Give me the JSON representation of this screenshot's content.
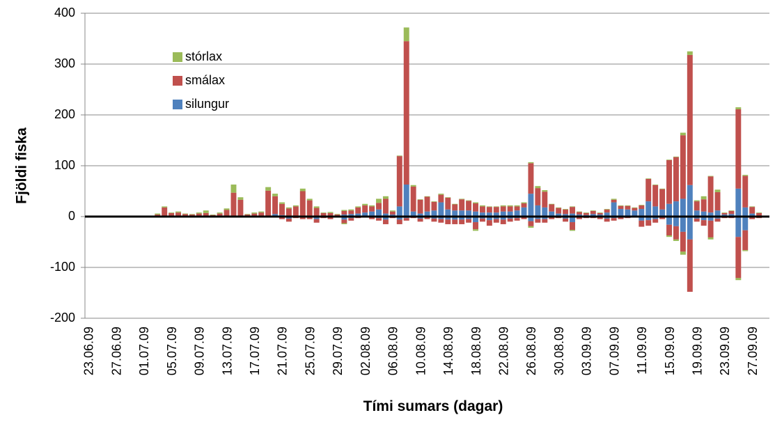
{
  "chart_data": {
    "type": "stacked_bar",
    "y_label": "Fjöldi fiska",
    "x_label": "Tími sumars (dagar)",
    "ylim": [
      -200,
      400
    ],
    "yticks": [
      -200,
      -100,
      0,
      100,
      200,
      300,
      400
    ],
    "grid": true,
    "legend": "upper left",
    "categories": [
      "23.06.09",
      null,
      null,
      null,
      "27.06.09",
      null,
      null,
      null,
      "01.07.09",
      null,
      null,
      null,
      "05.07.09",
      null,
      null,
      null,
      "09.07.09",
      null,
      null,
      null,
      "13.07.09",
      null,
      null,
      null,
      "17.07.09",
      null,
      null,
      null,
      "21.07.09",
      null,
      null,
      null,
      "25.07.09",
      null,
      null,
      null,
      "29.07.09",
      null,
      null,
      null,
      "02.08.09",
      null,
      null,
      null,
      "06.08.09",
      null,
      null,
      null,
      "10.08.09",
      null,
      null,
      null,
      "14.08.09",
      null,
      null,
      null,
      "18.08.09",
      null,
      null,
      null,
      "22.08.09",
      null,
      null,
      null,
      "26.08.09",
      null,
      null,
      null,
      "30.08.09",
      null,
      null,
      null,
      "03.09.09",
      null,
      null,
      null,
      "07.09.09",
      null,
      null,
      null,
      "11.09.09",
      null,
      null,
      null,
      "15.09.09",
      null,
      null,
      null,
      "19.09.09",
      null,
      null,
      null,
      "23.09.09",
      null,
      null,
      null,
      "27.09.09",
      null,
      null
    ],
    "series": [
      {
        "name": "silungur",
        "color": "#4f81bd",
        "values": [
          0,
          0,
          0,
          0,
          0,
          0,
          0,
          0,
          0,
          0,
          0,
          0,
          0,
          0,
          0,
          0,
          0,
          0,
          0,
          0,
          0,
          0,
          0,
          0,
          0,
          2,
          2,
          5,
          3,
          2,
          2,
          2,
          2,
          2,
          1,
          1,
          1,
          4,
          5,
          6,
          8,
          10,
          14,
          6,
          4,
          20,
          63,
          10,
          6,
          10,
          12,
          28,
          14,
          12,
          12,
          12,
          10,
          8,
          8,
          8,
          10,
          10,
          12,
          18,
          45,
          22,
          18,
          10,
          6,
          5,
          6,
          4,
          3,
          5,
          4,
          8,
          28,
          15,
          14,
          12,
          15,
          30,
          20,
          14,
          25,
          30,
          35,
          62,
          12,
          10,
          8,
          12,
          4,
          5,
          55,
          18,
          6,
          2,
          0
        ],
        "down_values": [
          0,
          0,
          0,
          0,
          0,
          0,
          0,
          0,
          0,
          0,
          0,
          0,
          0,
          0,
          0,
          0,
          0,
          0,
          0,
          0,
          0,
          0,
          0,
          0,
          0,
          0,
          0,
          -1,
          -2,
          -4,
          -1,
          -2,
          -2,
          -5,
          -1,
          -2,
          -1,
          -6,
          -3,
          -1,
          -1,
          -2,
          -3,
          -6,
          -1,
          -6,
          -3,
          -1,
          -4,
          -2,
          -4,
          -5,
          -6,
          -6,
          -6,
          -5,
          -11,
          -4,
          -7,
          -5,
          -6,
          -4,
          -3,
          -2,
          -9,
          -5,
          -5,
          -2,
          -1,
          -4,
          -11,
          -2,
          -1,
          -1,
          -2,
          -4,
          -3,
          -2,
          -1,
          -1,
          -8,
          -7,
          -5,
          -2,
          -16,
          -19,
          -30,
          -45,
          -4,
          -7,
          -8,
          -4,
          -1,
          -1,
          -40,
          -27,
          -2,
          -1,
          0
        ]
      },
      {
        "name": "smálax",
        "color": "#c0504d",
        "values": [
          0,
          0,
          0,
          0,
          0,
          0,
          0,
          2,
          2,
          2,
          4,
          18,
          7,
          8,
          5,
          4,
          6,
          7,
          3,
          6,
          13,
          47,
          33,
          4,
          6,
          6,
          49,
          35,
          22,
          14,
          18,
          48,
          30,
          15,
          6,
          6,
          3,
          7,
          7,
          12,
          14,
          10,
          13,
          29,
          6,
          99,
          282,
          49,
          27,
          29,
          17,
          15,
          23,
          12,
          22,
          19,
          16,
          12,
          11,
          11,
          10,
          10,
          8,
          8,
          60,
          34,
          31,
          14,
          11,
          9,
          13,
          5,
          4,
          6,
          3,
          6,
          5,
          6,
          7,
          5,
          7,
          44,
          42,
          40,
          86,
          87,
          125,
          256,
          18,
          24,
          71,
          36,
          3,
          6,
          156,
          62,
          13,
          5,
          2
        ],
        "down_values": [
          0,
          0,
          0,
          0,
          0,
          0,
          0,
          0,
          0,
          0,
          0,
          0,
          0,
          0,
          0,
          0,
          0,
          0,
          0,
          0,
          0,
          0,
          0,
          0,
          0,
          0,
          0,
          -1,
          -3,
          -6,
          -2,
          -3,
          -3,
          -7,
          -2,
          -3,
          -1,
          -7,
          -5,
          -2,
          -1,
          -3,
          -5,
          -9,
          -2,
          -9,
          -5,
          -2,
          -6,
          -3,
          -6,
          -7,
          -9,
          -9,
          -9,
          -7,
          -14,
          -6,
          -11,
          -7,
          -9,
          -6,
          -5,
          -3,
          -10,
          -7,
          -7,
          -3,
          -2,
          -6,
          -15,
          -3,
          -2,
          -2,
          -3,
          -6,
          -5,
          -3,
          -2,
          -1,
          -12,
          -11,
          -7,
          -3,
          -21,
          -26,
          -39,
          -103,
          -6,
          -11,
          -33,
          -6,
          -2,
          -2,
          -81,
          -39,
          -3,
          -2,
          0
        ]
      },
      {
        "name": "stórlax",
        "color": "#9bbb59",
        "values": [
          0,
          0,
          0,
          0,
          0,
          0,
          0,
          0,
          0,
          0,
          2,
          2,
          1,
          2,
          1,
          1,
          2,
          5,
          1,
          2,
          3,
          16,
          5,
          1,
          2,
          2,
          7,
          5,
          3,
          2,
          2,
          5,
          3,
          3,
          1,
          2,
          1,
          2,
          2,
          2,
          3,
          2,
          8,
          5,
          2,
          1,
          27,
          3,
          1,
          1,
          1,
          2,
          1,
          1,
          1,
          1,
          2,
          2,
          1,
          1,
          2,
          2,
          2,
          2,
          2,
          4,
          3,
          1,
          1,
          1,
          1,
          1,
          1,
          1,
          1,
          1,
          2,
          1,
          1,
          1,
          1,
          1,
          1,
          1,
          1,
          1,
          5,
          7,
          2,
          6,
          1,
          5,
          1,
          1,
          4,
          2,
          1,
          1,
          0
        ],
        "down_values": [
          0,
          0,
          0,
          0,
          0,
          0,
          0,
          0,
          0,
          0,
          0,
          0,
          0,
          0,
          0,
          0,
          0,
          0,
          0,
          0,
          0,
          0,
          0,
          0,
          0,
          0,
          0,
          0,
          0,
          0,
          0,
          0,
          0,
          0,
          0,
          0,
          0,
          -2,
          0,
          0,
          0,
          0,
          0,
          0,
          0,
          0,
          0,
          0,
          0,
          0,
          0,
          0,
          0,
          0,
          0,
          0,
          -3,
          0,
          0,
          0,
          0,
          0,
          0,
          0,
          -3,
          0,
          0,
          0,
          0,
          0,
          -2,
          0,
          0,
          0,
          0,
          0,
          0,
          0,
          0,
          0,
          0,
          0,
          0,
          0,
          -3,
          -3,
          -6,
          0,
          0,
          0,
          -4,
          0,
          0,
          0,
          -4,
          -2,
          0,
          0,
          0
        ]
      }
    ]
  }
}
